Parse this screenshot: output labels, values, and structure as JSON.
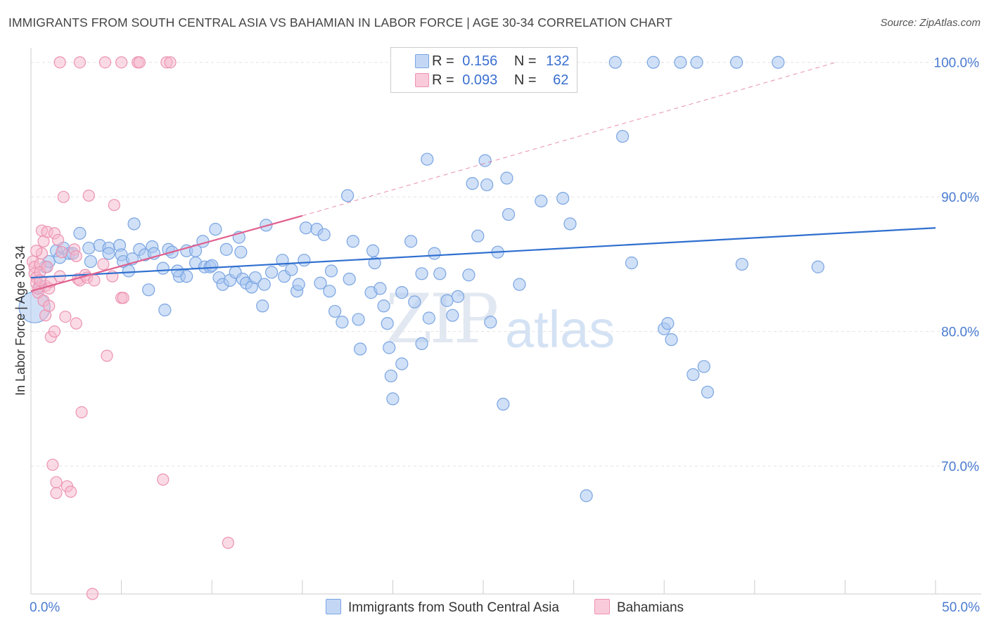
{
  "header": {
    "title": "IMMIGRANTS FROM SOUTH CENTRAL ASIA VS BAHAMIAN IN LABOR FORCE | AGE 30-34 CORRELATION CHART",
    "source": "Source: ZipAtlas.com"
  },
  "watermark": {
    "zip": "ZIP",
    "atlas": "atlas"
  },
  "legend": {
    "rows": [
      {
        "r_label": "R =",
        "r_value": "0.156",
        "n_label": "N =",
        "n_value": "132"
      },
      {
        "r_label": "R =",
        "r_value": "0.093",
        "n_label": "N =",
        "n_value": "62"
      }
    ]
  },
  "bottom_legend": {
    "series1": "Immigrants from South Central Asia",
    "series2": "Bahamians"
  },
  "colors": {
    "blue_fill": "#aac6f0",
    "blue_stroke": "#7aa5e2",
    "blue_line": "#2f6fcf",
    "pink_fill": "#f6b8cc",
    "pink_stroke": "#ec93b2",
    "pink_line": "#e0608e",
    "grid": "#e3e3e3",
    "tick_text": "#4a7bd0"
  },
  "chart_data": {
    "type": "scatter",
    "title": "IMMIGRANTS FROM SOUTH CENTRAL ASIA VS BAHAMIAN IN LABOR FORCE | AGE 30-34 CORRELATION CHART",
    "xlabel": "",
    "ylabel": "In Labor Force | Age 30-34",
    "xlim": [
      0,
      50
    ],
    "ylim": [
      60.5,
      101.5
    ],
    "x_tick_labels": [
      "0.0%",
      "50.0%"
    ],
    "y_ticks": [
      70,
      80,
      90,
      100
    ],
    "y_tick_labels": [
      "70.0%",
      "80.0%",
      "90.0%",
      "100.0%"
    ],
    "grid": true,
    "legend_position": "top-center",
    "series": [
      {
        "name": "Immigrants from South Central Asia",
        "color": "#aac6f0",
        "trend": {
          "x": [
            0,
            50
          ],
          "y": [
            84.0,
            87.7
          ]
        },
        "points": [
          [
            0.2,
            81.8
          ],
          [
            0.5,
            83.4
          ],
          [
            0.8,
            84.8
          ],
          [
            1.0,
            85.2
          ],
          [
            1.4,
            86.0
          ],
          [
            1.6,
            85.5
          ],
          [
            1.8,
            86.2
          ],
          [
            2.1,
            85.8
          ],
          [
            2.7,
            87.3
          ],
          [
            3.2,
            86.2
          ],
          [
            3.3,
            85.2
          ],
          [
            3.8,
            86.4
          ],
          [
            4.3,
            86.2
          ],
          [
            4.3,
            85.8
          ],
          [
            4.9,
            86.4
          ],
          [
            5.0,
            85.7
          ],
          [
            5.1,
            85.2
          ],
          [
            5.4,
            84.5
          ],
          [
            5.6,
            85.4
          ],
          [
            5.7,
            88.0
          ],
          [
            6.0,
            86.1
          ],
          [
            6.3,
            85.7
          ],
          [
            6.5,
            83.1
          ],
          [
            6.7,
            86.3
          ],
          [
            7.3,
            84.7
          ],
          [
            7.4,
            81.6
          ],
          [
            7.6,
            86.1
          ],
          [
            7.8,
            85.9
          ],
          [
            8.2,
            84.1
          ],
          [
            8.6,
            84.1
          ],
          [
            8.6,
            86.0
          ],
          [
            9.1,
            86.0
          ],
          [
            9.1,
            85.1
          ],
          [
            9.5,
            86.7
          ],
          [
            9.6,
            84.8
          ],
          [
            9.9,
            84.8
          ],
          [
            10.0,
            84.9
          ],
          [
            10.2,
            87.6
          ],
          [
            10.4,
            84.0
          ],
          [
            10.6,
            83.5
          ],
          [
            10.8,
            86.1
          ],
          [
            11.0,
            83.8
          ],
          [
            11.3,
            84.4
          ],
          [
            11.6,
            85.9
          ],
          [
            11.7,
            83.9
          ],
          [
            11.9,
            83.6
          ],
          [
            12.2,
            83.3
          ],
          [
            12.4,
            84.0
          ],
          [
            12.8,
            81.9
          ],
          [
            12.9,
            83.5
          ],
          [
            13.0,
            87.9
          ],
          [
            13.3,
            84.4
          ],
          [
            13.9,
            85.3
          ],
          [
            14.0,
            84.1
          ],
          [
            14.7,
            83.0
          ],
          [
            14.8,
            83.5
          ],
          [
            15.1,
            85.3
          ],
          [
            15.2,
            87.7
          ],
          [
            15.8,
            87.6
          ],
          [
            16.2,
            87.2
          ],
          [
            16.0,
            83.6
          ],
          [
            16.5,
            83.0
          ],
          [
            16.6,
            84.5
          ],
          [
            16.8,
            81.5
          ],
          [
            17.2,
            80.7
          ],
          [
            17.5,
            90.1
          ],
          [
            17.6,
            83.9
          ],
          [
            17.8,
            86.7
          ],
          [
            18.1,
            80.9
          ],
          [
            18.2,
            78.7
          ],
          [
            18.8,
            82.9
          ],
          [
            19.0,
            85.1
          ],
          [
            19.3,
            83.2
          ],
          [
            19.5,
            81.9
          ],
          [
            19.7,
            80.6
          ],
          [
            19.8,
            78.8
          ],
          [
            19.9,
            76.7
          ],
          [
            20.0,
            75.0
          ],
          [
            20.5,
            82.9
          ],
          [
            20.5,
            77.6
          ],
          [
            21.0,
            86.7
          ],
          [
            21.2,
            82.2
          ],
          [
            21.6,
            84.3
          ],
          [
            21.6,
            79.1
          ],
          [
            21.9,
            92.8
          ],
          [
            22.0,
            81.0
          ],
          [
            22.3,
            85.8
          ],
          [
            22.6,
            84.3
          ],
          [
            23.0,
            82.3
          ],
          [
            23.3,
            81.2
          ],
          [
            23.6,
            82.6
          ],
          [
            24.2,
            84.2
          ],
          [
            24.4,
            91.0
          ],
          [
            24.7,
            87.1
          ],
          [
            25.1,
            92.7
          ],
          [
            25.2,
            90.9
          ],
          [
            25.4,
            80.7
          ],
          [
            25.8,
            85.9
          ],
          [
            26.1,
            74.6
          ],
          [
            26.3,
            91.4
          ],
          [
            26.4,
            88.7
          ],
          [
            27.0,
            83.5
          ],
          [
            28.2,
            89.7
          ],
          [
            29.4,
            89.9
          ],
          [
            29.8,
            88.0
          ],
          [
            30.7,
            67.8
          ],
          [
            32.3,
            100.0
          ],
          [
            32.7,
            94.5
          ],
          [
            33.2,
            85.1
          ],
          [
            34.4,
            100.0
          ],
          [
            35.0,
            80.2
          ],
          [
            35.2,
            80.6
          ],
          [
            35.4,
            79.4
          ],
          [
            35.9,
            100.0
          ],
          [
            36.6,
            76.8
          ],
          [
            36.8,
            100.0
          ],
          [
            37.2,
            77.4
          ],
          [
            37.4,
            75.5
          ],
          [
            39.0,
            100.0
          ],
          [
            41.3,
            100.0
          ],
          [
            43.5,
            84.8
          ],
          [
            39.3,
            85.0
          ],
          [
            2.3,
            85.8
          ],
          [
            6.8,
            85.8
          ],
          [
            8.1,
            84.5
          ],
          [
            11.5,
            87.0
          ],
          [
            14.4,
            84.6
          ],
          [
            18.9,
            86.0
          ]
        ]
      },
      {
        "name": "Bahamians",
        "color": "#f6b8cc",
        "trend": {
          "x": [
            0,
            15
          ],
          "y": [
            83.0,
            88.6
          ]
        },
        "trend_dashed": {
          "x": [
            15,
            44.5
          ],
          "y": [
            88.6,
            100.0
          ]
        },
        "points": [
          [
            0.1,
            85.2
          ],
          [
            0.2,
            84.8
          ],
          [
            0.2,
            84.3
          ],
          [
            0.3,
            84.0
          ],
          [
            0.3,
            83.6
          ],
          [
            0.4,
            82.9
          ],
          [
            0.4,
            83.2
          ],
          [
            0.5,
            85.0
          ],
          [
            0.5,
            84.4
          ],
          [
            0.6,
            85.8
          ],
          [
            0.6,
            87.5
          ],
          [
            0.7,
            86.7
          ],
          [
            0.7,
            82.3
          ],
          [
            0.8,
            81.2
          ],
          [
            0.8,
            83.4
          ],
          [
            0.9,
            87.4
          ],
          [
            0.9,
            84.8
          ],
          [
            1.0,
            83.2
          ],
          [
            1.0,
            81.9
          ],
          [
            1.1,
            79.6
          ],
          [
            1.1,
            83.7
          ],
          [
            1.2,
            70.1
          ],
          [
            1.3,
            80.0
          ],
          [
            1.3,
            87.3
          ],
          [
            1.4,
            68.8
          ],
          [
            1.4,
            68.0
          ],
          [
            1.5,
            86.8
          ],
          [
            1.6,
            84.1
          ],
          [
            1.7,
            85.9
          ],
          [
            1.8,
            90.0
          ],
          [
            1.9,
            81.1
          ],
          [
            2.0,
            68.5
          ],
          [
            2.2,
            68.1
          ],
          [
            2.4,
            86.1
          ],
          [
            2.5,
            80.6
          ],
          [
            2.5,
            85.6
          ],
          [
            2.6,
            83.9
          ],
          [
            2.7,
            83.8
          ],
          [
            2.8,
            74.0
          ],
          [
            3.0,
            84.2
          ],
          [
            3.1,
            84.0
          ],
          [
            3.2,
            90.1
          ],
          [
            3.5,
            83.8
          ],
          [
            4.0,
            85.0
          ],
          [
            4.2,
            78.2
          ],
          [
            4.5,
            84.1
          ],
          [
            4.6,
            89.4
          ],
          [
            5.0,
            82.5
          ],
          [
            5.1,
            82.5
          ],
          [
            7.3,
            69.0
          ],
          [
            10.9,
            64.3
          ],
          [
            1.6,
            100.0
          ],
          [
            2.7,
            100.0
          ],
          [
            4.1,
            100.0
          ],
          [
            5.0,
            100.0
          ],
          [
            5.9,
            100.0
          ],
          [
            6.0,
            100.0
          ],
          [
            7.5,
            100.0
          ],
          [
            7.7,
            100.0
          ],
          [
            3.4,
            60.5
          ],
          [
            0.3,
            86.0
          ],
          [
            0.5,
            83.8
          ]
        ]
      }
    ]
  }
}
